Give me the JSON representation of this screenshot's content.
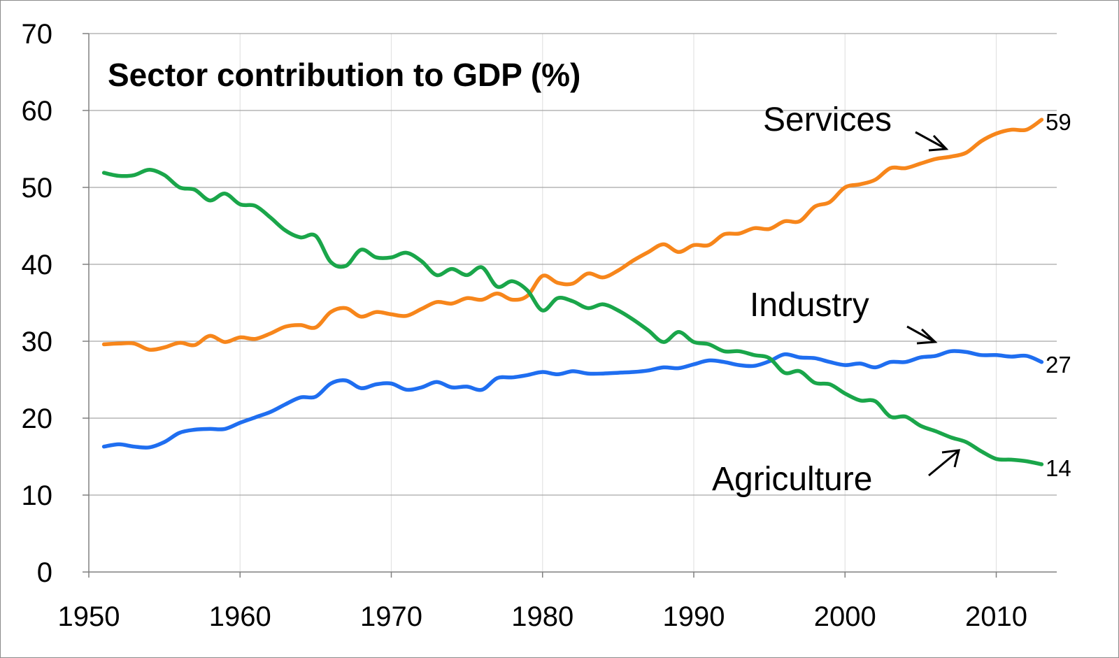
{
  "chart_data": {
    "type": "line",
    "title": "Sector contribution to GDP (%)",
    "xlabel": "",
    "ylabel": "",
    "xlim": [
      1950,
      2014
    ],
    "ylim": [
      0,
      70
    ],
    "xticks": [
      "1950",
      "1960",
      "1970",
      "1980",
      "1990",
      "2000",
      "2010"
    ],
    "yticks": [
      "0",
      "10",
      "20",
      "30",
      "40",
      "50",
      "60",
      "70"
    ],
    "grid": "horizontal major, faint vertical",
    "x": [
      1951,
      1952,
      1953,
      1954,
      1955,
      1956,
      1957,
      1958,
      1959,
      1960,
      1961,
      1962,
      1963,
      1964,
      1965,
      1966,
      1967,
      1968,
      1969,
      1970,
      1971,
      1972,
      1973,
      1974,
      1975,
      1976,
      1977,
      1978,
      1979,
      1980,
      1981,
      1982,
      1983,
      1984,
      1985,
      1986,
      1987,
      1988,
      1989,
      1990,
      1991,
      1992,
      1993,
      1994,
      1995,
      1996,
      1997,
      1998,
      1999,
      2000,
      2001,
      2002,
      2003,
      2004,
      2005,
      2006,
      2007,
      2008,
      2009,
      2010,
      2011,
      2012,
      2013
    ],
    "series": [
      {
        "name": "Services",
        "color": "#f7861b",
        "end_label": "59",
        "values": [
          29.6,
          29.7,
          29.7,
          28.9,
          29.2,
          29.8,
          29.5,
          30.7,
          29.9,
          30.5,
          30.3,
          31.0,
          31.9,
          32.1,
          31.8,
          33.8,
          34.3,
          33.2,
          33.8,
          33.5,
          33.3,
          34.2,
          35.1,
          34.9,
          35.6,
          35.4,
          36.2,
          35.4,
          35.9,
          38.5,
          37.6,
          37.5,
          38.8,
          38.3,
          39.2,
          40.5,
          41.6,
          42.6,
          41.6,
          42.5,
          42.5,
          43.9,
          44.0,
          44.7,
          44.6,
          45.6,
          45.6,
          47.5,
          48.1,
          50.0,
          50.4,
          51.0,
          52.5,
          52.5,
          53.1,
          53.7,
          54.0,
          54.5,
          56.0,
          57.0,
          57.5,
          57.5,
          58.8
        ]
      },
      {
        "name": "Industry",
        "color": "#1f6ef0",
        "end_label": "27",
        "values": [
          16.3,
          16.6,
          16.3,
          16.2,
          16.9,
          18.1,
          18.5,
          18.6,
          18.6,
          19.4,
          20.1,
          20.8,
          21.8,
          22.7,
          22.8,
          24.5,
          24.9,
          23.9,
          24.4,
          24.5,
          23.7,
          24.0,
          24.7,
          24.0,
          24.1,
          23.7,
          25.2,
          25.3,
          25.6,
          26.0,
          25.7,
          26.1,
          25.8,
          25.8,
          25.9,
          26.0,
          26.2,
          26.6,
          26.5,
          27.0,
          27.5,
          27.3,
          26.9,
          26.8,
          27.4,
          28.3,
          27.9,
          27.8,
          27.3,
          26.9,
          27.1,
          26.6,
          27.3,
          27.3,
          27.9,
          28.1,
          28.7,
          28.6,
          28.2,
          28.2,
          28.0,
          28.1,
          27.3
        ]
      },
      {
        "name": "Agriculture",
        "color": "#1aa64a",
        "end_label": "14",
        "values": [
          51.9,
          51.5,
          51.6,
          52.3,
          51.6,
          50.0,
          49.7,
          48.3,
          49.2,
          47.8,
          47.6,
          46.1,
          44.4,
          43.5,
          43.7,
          40.3,
          39.8,
          41.9,
          40.9,
          40.9,
          41.5,
          40.4,
          38.6,
          39.4,
          38.6,
          39.6,
          37.1,
          37.8,
          36.6,
          34.0,
          35.6,
          35.2,
          34.3,
          34.8,
          34.0,
          32.8,
          31.4,
          29.9,
          31.2,
          29.9,
          29.6,
          28.7,
          28.7,
          28.2,
          27.8,
          25.9,
          26.1,
          24.6,
          24.4,
          23.2,
          22.3,
          22.2,
          20.2,
          20.2,
          19.0,
          18.3,
          17.5,
          16.9,
          15.7,
          14.7,
          14.6,
          14.4,
          14.0
        ]
      }
    ]
  }
}
